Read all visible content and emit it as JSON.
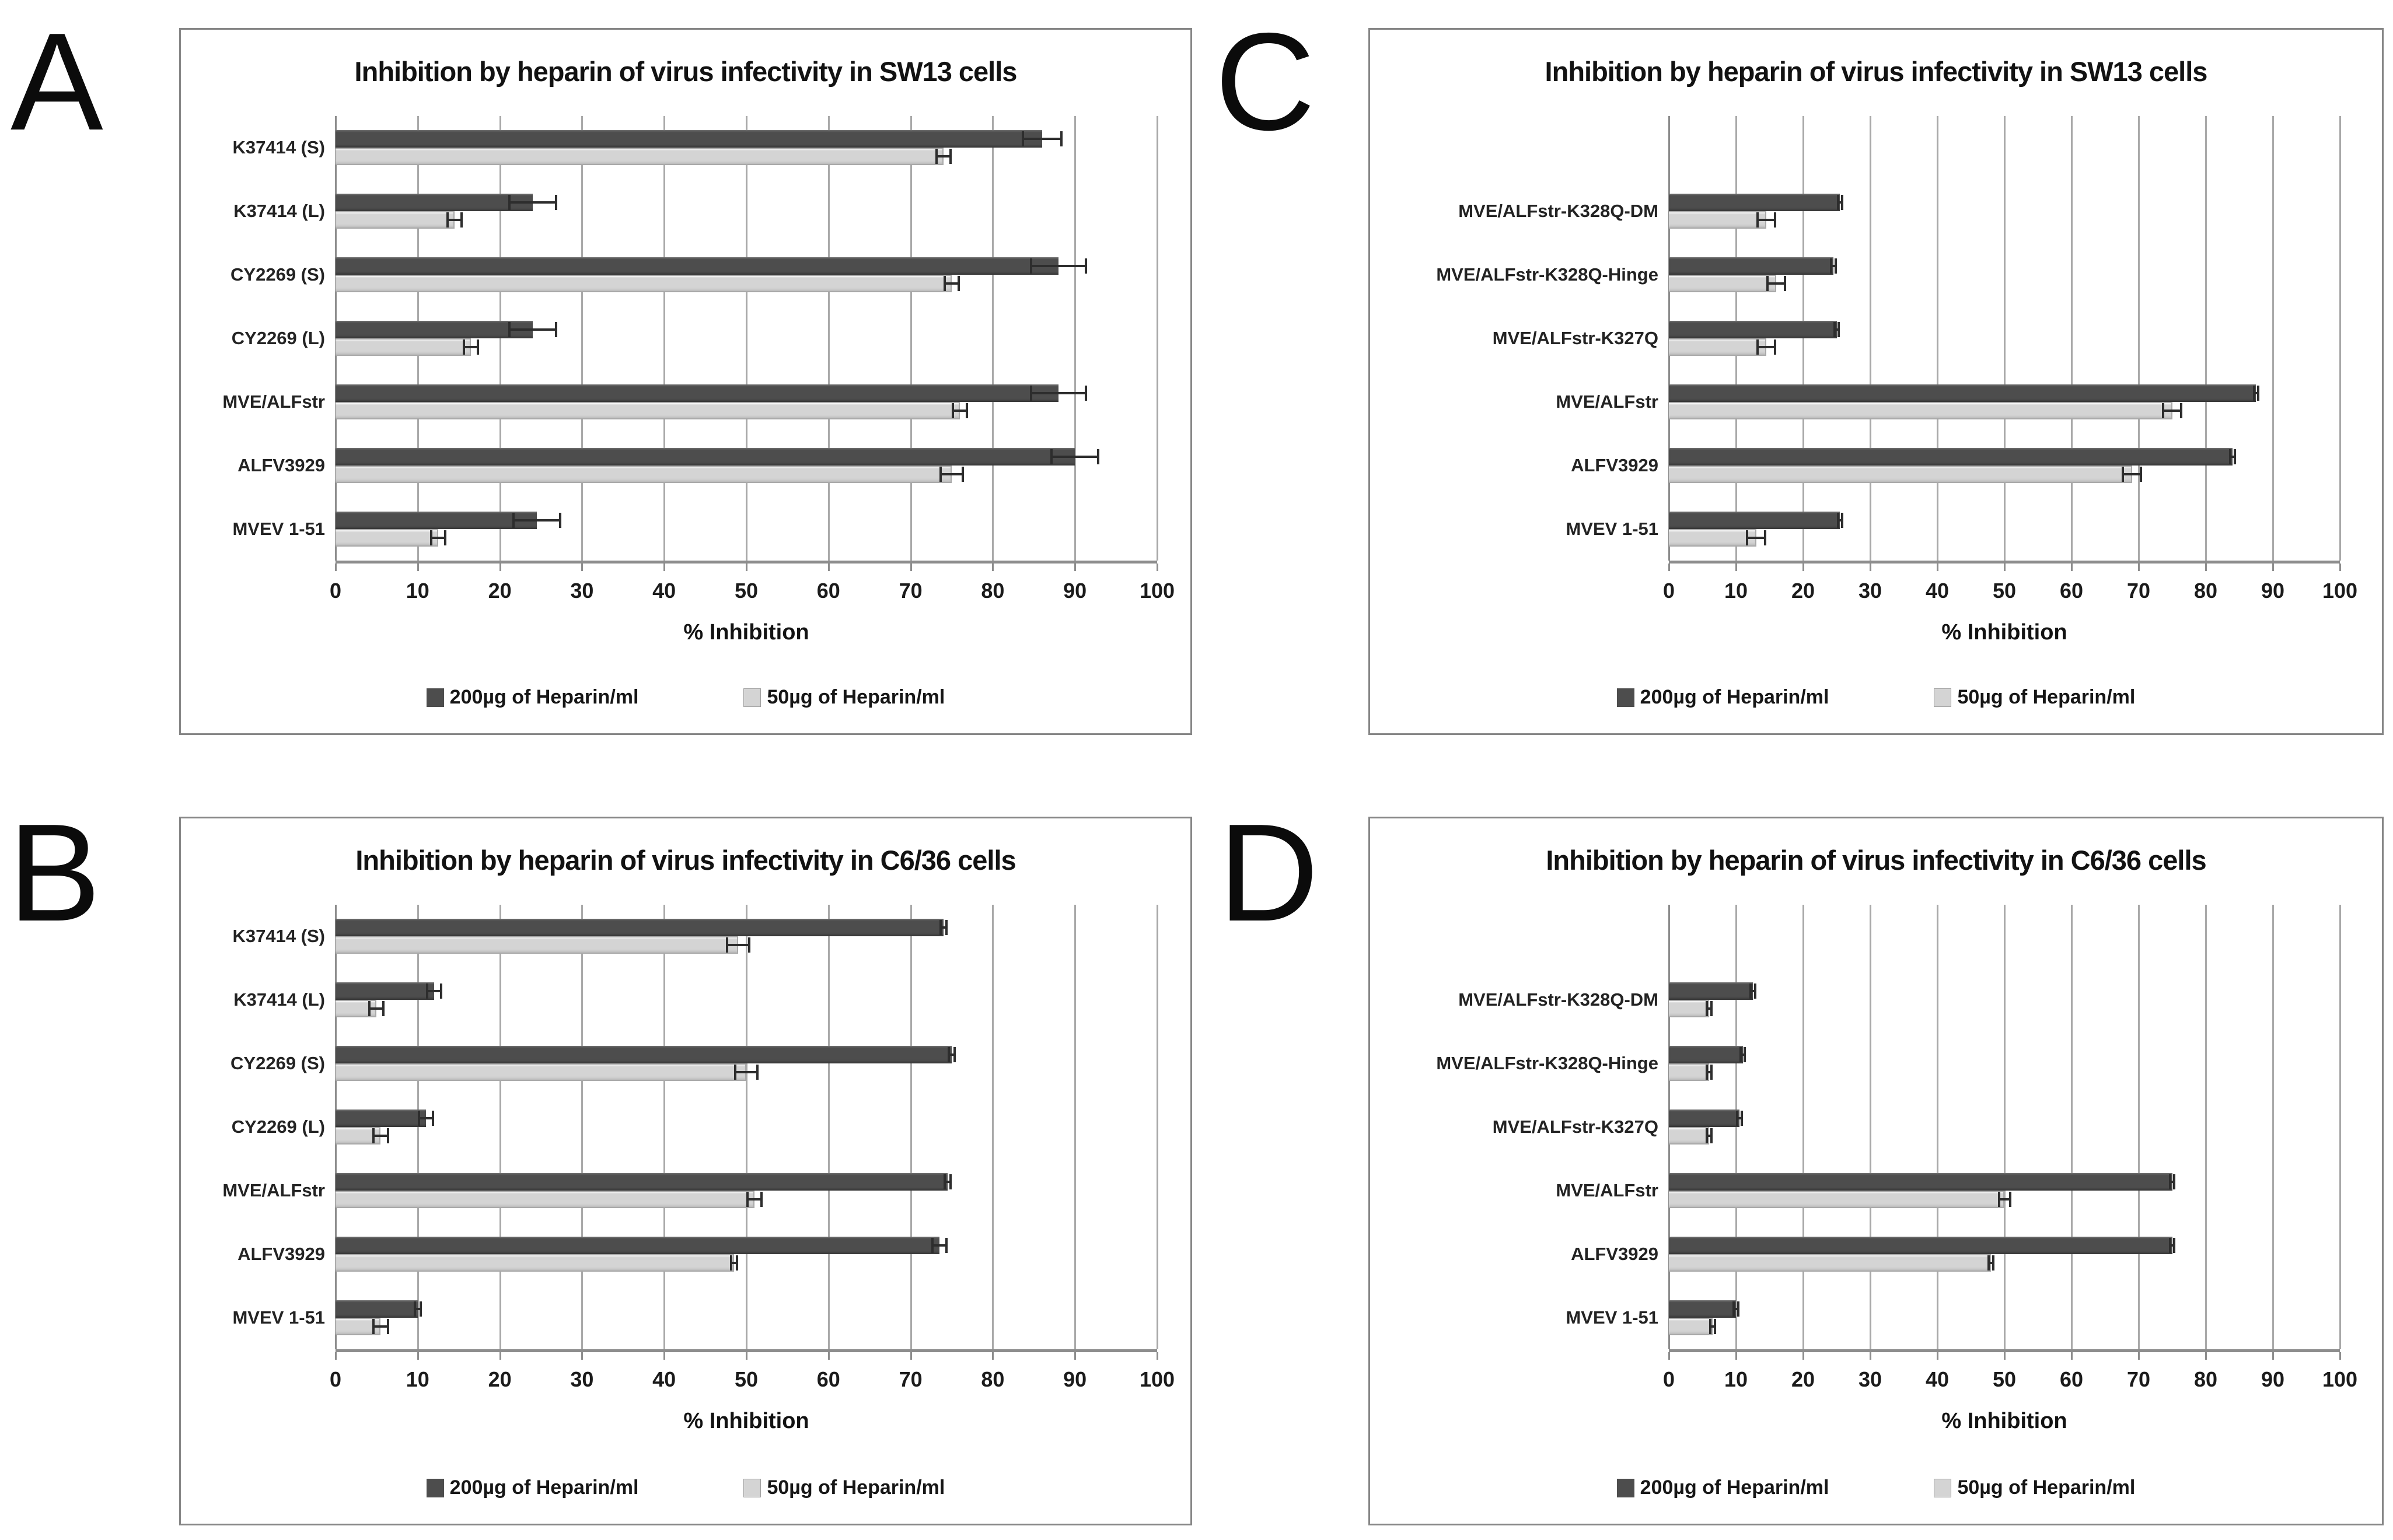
{
  "figure_background": "#ffffff",
  "panel_border_color": "#868686",
  "gridline_color": "#a9a9a9",
  "error_bar_color": "#2d2d2d",
  "chart_data": [
    {
      "panel": "A",
      "type": "bar",
      "orientation": "horizontal",
      "title": "Inhibition by heparin of virus infectivity in SW13 cells",
      "xlabel": "% Inhibition",
      "xlim": [
        0,
        100
      ],
      "xticks": [
        0,
        10,
        20,
        30,
        40,
        50,
        60,
        70,
        80,
        90,
        100
      ],
      "grid": true,
      "legend_position": "bottom",
      "layout_slots": 7,
      "categories": [
        "K37414 (S)",
        "K37414 (L)",
        "CY2269 (S)",
        "CY2269 (L)",
        "MVE/ALFstr",
        "ALFV3929",
        "MVEV 1-51"
      ],
      "series": [
        {
          "name": "200µg of Heparin/ml",
          "color": "#4d4d4d",
          "values": [
            86,
            24,
            88,
            24,
            88,
            90,
            24.5
          ],
          "errors": [
            2.5,
            3,
            3.5,
            3,
            3.5,
            3,
            3
          ]
        },
        {
          "name": "50µg of Heparin/ml",
          "color": "#d4d4d4",
          "values": [
            74,
            14.5,
            75,
            16.5,
            76,
            75,
            12.5
          ],
          "errors": [
            1,
            1,
            1,
            1,
            1,
            1.5,
            1
          ]
        }
      ]
    },
    {
      "panel": "B",
      "type": "bar",
      "orientation": "horizontal",
      "title": "Inhibition by heparin of virus infectivity in C6/36 cells",
      "xlabel": "% Inhibition",
      "xlim": [
        0,
        100
      ],
      "xticks": [
        0,
        10,
        20,
        30,
        40,
        50,
        60,
        70,
        80,
        90,
        100
      ],
      "grid": true,
      "legend_position": "bottom",
      "layout_slots": 7,
      "categories": [
        "K37414 (S)",
        "K37414 (L)",
        "CY2269 (S)",
        "CY2269 (L)",
        "MVE/ALFstr",
        "ALFV3929",
        "MVEV 1-51"
      ],
      "series": [
        {
          "name": "200µg of Heparin/ml",
          "color": "#4d4d4d",
          "values": [
            74,
            12,
            75,
            11,
            74.5,
            73.5,
            10
          ],
          "errors": [
            0.5,
            1,
            0.5,
            1,
            0.5,
            1,
            0.5
          ]
        },
        {
          "name": "50µg of Heparin/ml",
          "color": "#d4d4d4",
          "values": [
            49,
            5,
            50,
            5.5,
            51,
            48.5,
            5.5
          ],
          "errors": [
            1.5,
            1,
            1.5,
            1,
            1,
            0.5,
            1
          ]
        }
      ]
    },
    {
      "panel": "C",
      "type": "bar",
      "orientation": "horizontal",
      "title": "Inhibition by heparin of virus infectivity in SW13 cells",
      "xlabel": "% Inhibition",
      "xlim": [
        0,
        100
      ],
      "xticks": [
        0,
        10,
        20,
        30,
        40,
        50,
        60,
        70,
        80,
        90,
        100
      ],
      "grid": true,
      "legend_position": "bottom",
      "layout_slots": 7,
      "categories": [
        "MVE/ALFstr-K328Q-DM",
        "MVE/ALFstr-K328Q-Hinge",
        "MVE/ALFstr-K327Q",
        "MVE/ALFstr",
        "ALFV3929",
        "MVEV 1-51"
      ],
      "series": [
        {
          "name": "200µg of Heparin/ml",
          "color": "#4d4d4d",
          "values": [
            25.5,
            24.5,
            25,
            87.5,
            84,
            25.5
          ],
          "errors": [
            0.5,
            0.5,
            0.5,
            0.5,
            0.5,
            0.5
          ]
        },
        {
          "name": "50µg of Heparin/ml",
          "color": "#d4d4d4",
          "values": [
            14.5,
            16,
            14.5,
            75,
            69,
            13
          ],
          "errors": [
            1.5,
            1.5,
            1.5,
            1.5,
            1.5,
            1.5
          ]
        }
      ]
    },
    {
      "panel": "D",
      "type": "bar",
      "orientation": "horizontal",
      "title": "Inhibition by heparin of virus infectivity in C6/36 cells",
      "xlabel": "% Inhibition",
      "xlim": [
        0,
        100
      ],
      "xticks": [
        0,
        10,
        20,
        30,
        40,
        50,
        60,
        70,
        80,
        90,
        100
      ],
      "grid": true,
      "legend_position": "bottom",
      "layout_slots": 7,
      "categories": [
        "MVE/ALFstr-K328Q-DM",
        "MVE/ALFstr-K328Q-Hinge",
        "MVE/ALFstr-K327Q",
        "MVE/ALFstr",
        "ALFV3929",
        "MVEV 1-51"
      ],
      "series": [
        {
          "name": "200µg of Heparin/ml",
          "color": "#4d4d4d",
          "values": [
            12.5,
            11,
            10.5,
            75,
            75,
            10
          ],
          "errors": [
            0.5,
            0.5,
            0.5,
            0.5,
            0.5,
            0.5
          ]
        },
        {
          "name": "50µg of Heparin/ml",
          "color": "#d4d4d4",
          "values": [
            6,
            6,
            6,
            50,
            48,
            6.5
          ],
          "errors": [
            0.5,
            0.5,
            0.5,
            1,
            0.5,
            0.5
          ]
        }
      ]
    }
  ]
}
